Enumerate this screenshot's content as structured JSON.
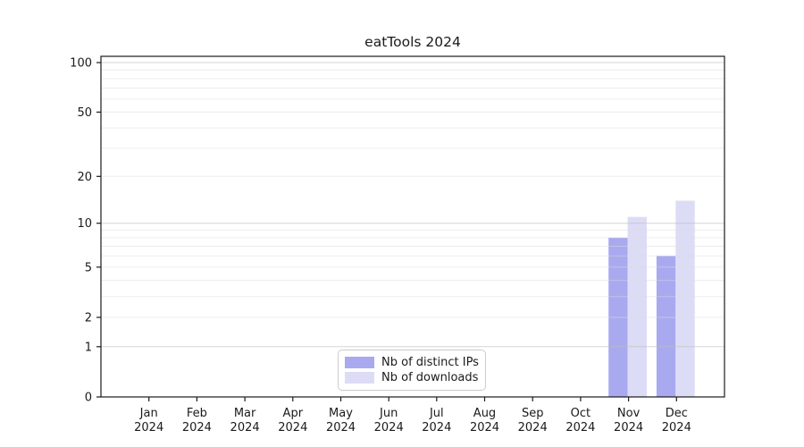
{
  "title": "eatTools 2024",
  "chart_data": {
    "type": "bar",
    "title": "eatTools 2024",
    "categories": [
      "Jan",
      "Feb",
      "Mar",
      "Apr",
      "May",
      "Jun",
      "Jul",
      "Aug",
      "Sep",
      "Oct",
      "Nov",
      "Dec"
    ],
    "category_year": "2024",
    "series": [
      {
        "name": "Nb of distinct IPs",
        "color": "#a9a9f0",
        "values": [
          0,
          0,
          0,
          0,
          0,
          0,
          0,
          0,
          0,
          0,
          8,
          6
        ]
      },
      {
        "name": "Nb of downloads",
        "color": "#dcdcf6",
        "values": [
          0,
          0,
          0,
          0,
          0,
          0,
          0,
          0,
          0,
          0,
          11,
          14
        ]
      }
    ],
    "y_axis": {
      "scale": "log10(value+1)",
      "tick_labels": [
        0,
        1,
        2,
        5,
        10,
        20,
        50,
        100
      ],
      "major_gridlines": [
        1,
        10,
        100
      ],
      "minor_gridlines": [
        2,
        3,
        4,
        5,
        6,
        7,
        8,
        9,
        20,
        30,
        40,
        50,
        60,
        70,
        80,
        90
      ],
      "ylim": [
        0,
        109
      ]
    },
    "legend_position": "lower center",
    "grid": true,
    "colors": {
      "bar_dark": "#a9a9f0",
      "bar_light": "#dcdcf6",
      "major_grid": "rgba(190,190,190,0.65)",
      "minor_grid": "rgba(220,220,220,0.5)",
      "spine": "#1a1a1a",
      "text": "#1a1a1a"
    }
  }
}
